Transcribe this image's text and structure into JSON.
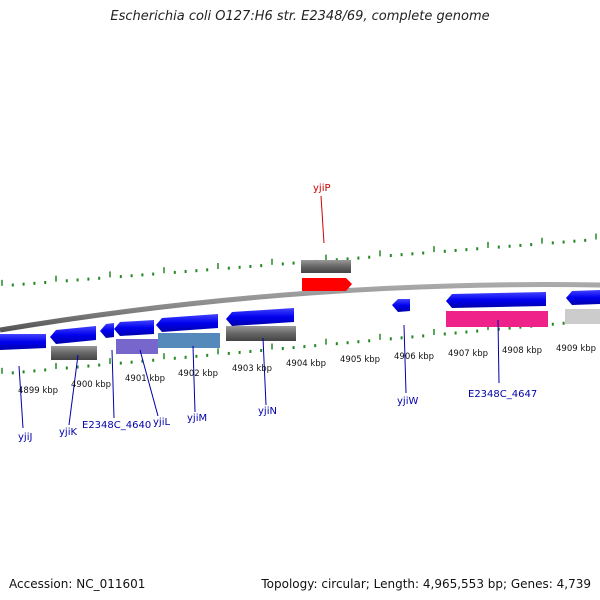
{
  "title": "Escherichia coli O127:H6 str. E2348/69, complete genome",
  "footer": {
    "accession": "Accession: NC_011601",
    "summary": "Topology: circular; Length: 4,965,553 bp; Genes: 4,739"
  },
  "kbp_labels": [
    "4899 kbp",
    "4900 kbp",
    "4901 kbp",
    "4902 kbp",
    "4903 kbp",
    "4904 kbp",
    "4905 kbp",
    "4906 kbp",
    "4907 kbp",
    "4908 kbp",
    "4909 kbp"
  ],
  "gene_labels": [
    "yjiP",
    "yjiJ",
    "yjiK",
    "E2348C_4640",
    "yjiL",
    "yjiM",
    "yjiN",
    "yjiW",
    "E2348C_4647"
  ],
  "colors": {
    "gene_blue": "#0000ee",
    "rna_gray": "#666666",
    "highlight_red": "#ff0000",
    "highlight_pink": "#ee2288",
    "purple": "#7766cc",
    "steel_blue": "#5588bb",
    "light_gray": "#cccccc",
    "tick_green": "#228822",
    "backbone": "#888888",
    "label_blue": "#0000aa",
    "label_red": "#cc0000"
  }
}
